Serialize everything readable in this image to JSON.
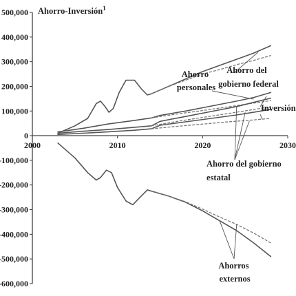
{
  "chart_data": {
    "type": "line",
    "title": "Ahorro-Inversión",
    "title_superscript": "1",
    "xlim": [
      2000,
      2030
    ],
    "ylim": [
      -600000,
      500000
    ],
    "x_ticks": [
      2000,
      2010,
      2020,
      2030
    ],
    "x_tick_labels": [
      "2000",
      "2010",
      "2020",
      "2030"
    ],
    "y_ticks": [
      500000,
      400000,
      300000,
      200000,
      100000,
      0,
      -100000,
      -200000,
      -300000,
      -400000,
      -500000,
      -600000
    ],
    "y_tick_labels": [
      "500,000",
      "400,000",
      "300,000",
      "200,000",
      "100,000",
      "0",
      "-100,000",
      "-200,000",
      "-300,000",
      "-400,000",
      "-500,000",
      "-600,000"
    ],
    "grid": false,
    "legend": "none",
    "colors": {
      "solid": "#555555",
      "dashed": "#777777",
      "axis": "#333333"
    },
    "series": [
      {
        "style": "solid",
        "points": [
          [
            2003,
            10000
          ],
          [
            2005,
            40000
          ],
          [
            2006.5,
            70000
          ],
          [
            2007.5,
            130000
          ],
          [
            2008,
            140000
          ],
          [
            2008.5,
            120000
          ],
          [
            2009,
            95000
          ],
          [
            2009.5,
            110000
          ],
          [
            2010.2,
            175000
          ],
          [
            2011,
            225000
          ],
          [
            2012,
            225000
          ],
          [
            2012.8,
            190000
          ],
          [
            2013.5,
            165000
          ],
          [
            2014,
            170000
          ],
          [
            2016,
            200000
          ],
          [
            2018,
            230000
          ],
          [
            2020,
            260000
          ],
          [
            2022,
            285000
          ],
          [
            2024,
            310000
          ],
          [
            2026,
            335000
          ],
          [
            2028,
            365000
          ]
        ]
      },
      {
        "style": "dashed",
        "points": [
          [
            2014,
            170000
          ],
          [
            2016,
            200000
          ],
          [
            2018,
            225000
          ],
          [
            2020,
            250000
          ],
          [
            2022,
            268000
          ],
          [
            2024,
            288000
          ],
          [
            2026,
            305000
          ],
          [
            2028,
            325000
          ]
        ]
      },
      {
        "style": "solid",
        "points": [
          [
            2003,
            15000
          ],
          [
            2006,
            30000
          ],
          [
            2009,
            48000
          ],
          [
            2012,
            62000
          ],
          [
            2014,
            72000
          ],
          [
            2015,
            82000
          ],
          [
            2018,
            100000
          ],
          [
            2021,
            120000
          ],
          [
            2024,
            140000
          ],
          [
            2026,
            155000
          ],
          [
            2028,
            175000
          ]
        ]
      },
      {
        "style": "dashed",
        "points": [
          [
            2014,
            72000
          ],
          [
            2017,
            88000
          ],
          [
            2020,
            102000
          ],
          [
            2023,
            117000
          ],
          [
            2026,
            132000
          ],
          [
            2028,
            142000
          ]
        ]
      },
      {
        "style": "solid",
        "points": [
          [
            2003,
            10000
          ],
          [
            2006,
            18000
          ],
          [
            2009,
            25000
          ],
          [
            2012,
            34000
          ],
          [
            2014,
            40000
          ],
          [
            2015,
            58000
          ],
          [
            2018,
            78000
          ],
          [
            2021,
            98000
          ],
          [
            2024,
            118000
          ],
          [
            2026,
            135000
          ],
          [
            2028,
            152000
          ]
        ]
      },
      {
        "style": "dashed",
        "points": [
          [
            2014,
            40000
          ],
          [
            2017,
            58000
          ],
          [
            2020,
            74000
          ],
          [
            2023,
            90000
          ],
          [
            2026,
            106000
          ],
          [
            2028,
            118000
          ]
        ]
      },
      {
        "style": "solid",
        "points": [
          [
            2003,
            5000
          ],
          [
            2006,
            10000
          ],
          [
            2009,
            16000
          ],
          [
            2012,
            22000
          ],
          [
            2014,
            28000
          ],
          [
            2015,
            42000
          ],
          [
            2018,
            56000
          ],
          [
            2021,
            70000
          ],
          [
            2024,
            84000
          ],
          [
            2026,
            95000
          ],
          [
            2028,
            107000
          ]
        ]
      },
      {
        "style": "dashed",
        "points": [
          [
            2014,
            28000
          ],
          [
            2017,
            38000
          ],
          [
            2020,
            47000
          ],
          [
            2023,
            56000
          ],
          [
            2026,
            64000
          ],
          [
            2028,
            70000
          ]
        ]
      },
      {
        "style": "solid",
        "points": [
          [
            2003,
            -30000
          ],
          [
            2005,
            -90000
          ],
          [
            2006.5,
            -150000
          ],
          [
            2007.5,
            -180000
          ],
          [
            2008,
            -170000
          ],
          [
            2008.7,
            -140000
          ],
          [
            2009.3,
            -150000
          ],
          [
            2010,
            -210000
          ],
          [
            2011,
            -265000
          ],
          [
            2011.8,
            -280000
          ],
          [
            2012.5,
            -255000
          ],
          [
            2013.5,
            -220000
          ],
          [
            2014,
            -225000
          ],
          [
            2016,
            -245000
          ],
          [
            2018,
            -270000
          ],
          [
            2020,
            -305000
          ],
          [
            2022,
            -345000
          ],
          [
            2024,
            -385000
          ],
          [
            2026,
            -435000
          ],
          [
            2028,
            -490000
          ]
        ]
      },
      {
        "style": "dashed",
        "points": [
          [
            2014,
            -225000
          ],
          [
            2016,
            -245000
          ],
          [
            2018,
            -268000
          ],
          [
            2020,
            -298000
          ],
          [
            2022,
            -330000
          ],
          [
            2024,
            -360000
          ],
          [
            2026,
            -395000
          ],
          [
            2028,
            -435000
          ]
        ]
      }
    ],
    "annotations": [
      {
        "lines": [
          "Ahorro",
          "personales"
        ]
      },
      {
        "lines": [
          "Ahorro del",
          "gobierno federal"
        ]
      },
      {
        "lines": [
          "Inversión"
        ]
      },
      {
        "lines": [
          "Ahorro  del gobierno",
          "estatal"
        ]
      },
      {
        "lines": [
          "Ahorros",
          "externos"
        ]
      }
    ]
  }
}
